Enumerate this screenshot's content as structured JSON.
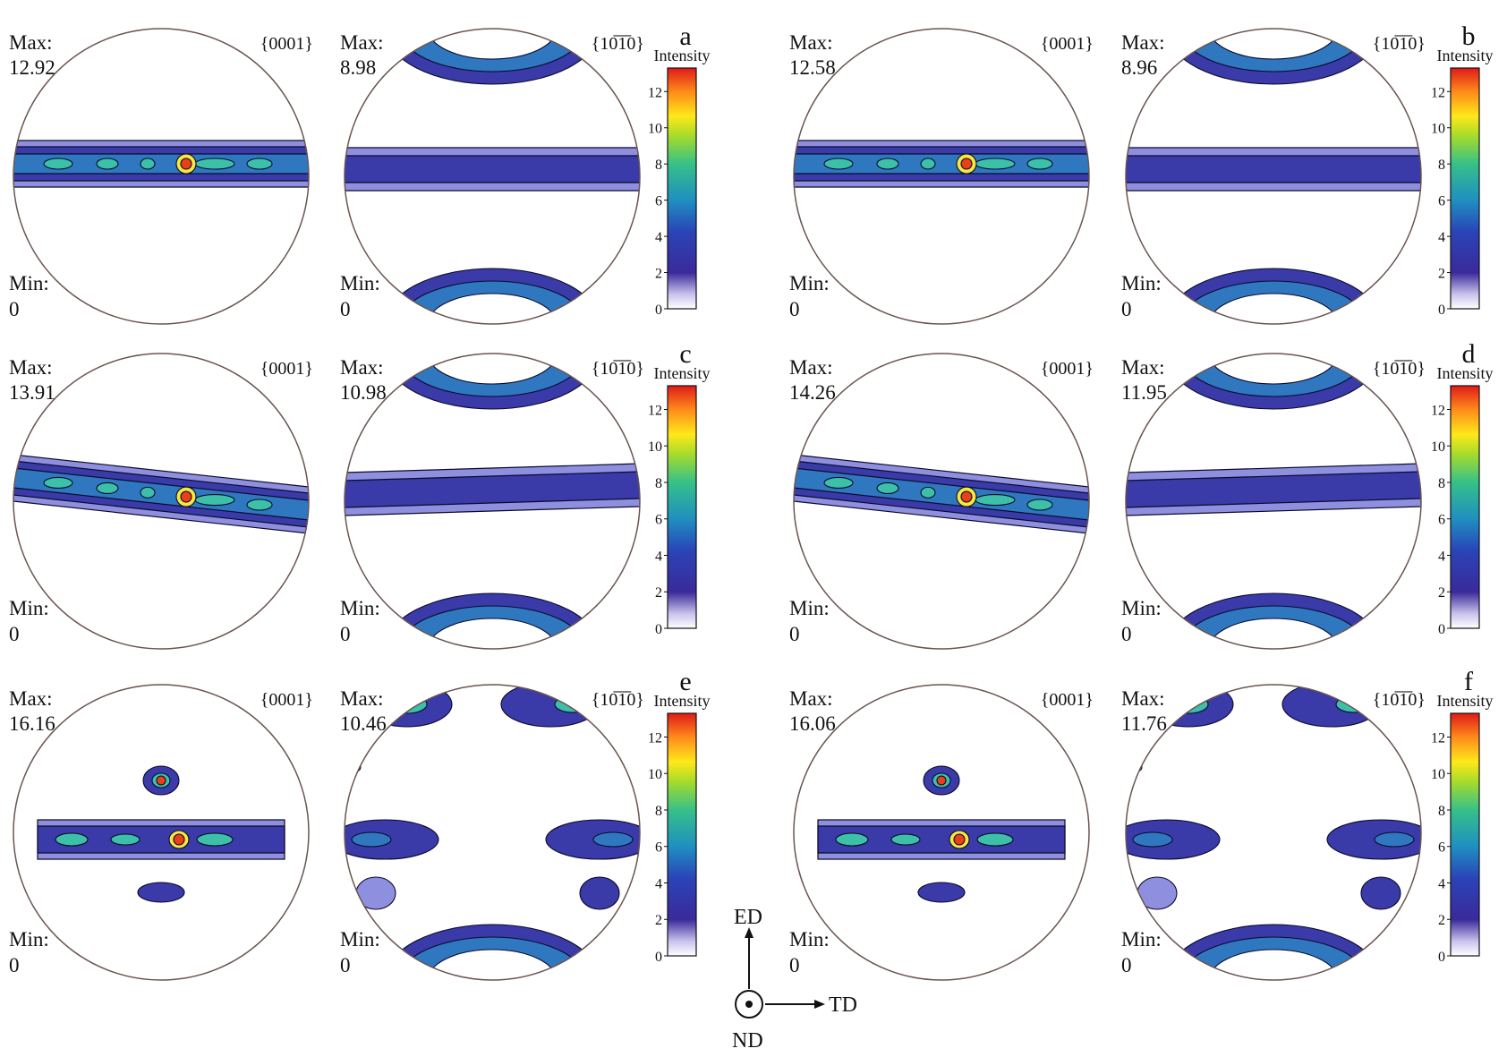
{
  "panels": [
    {
      "letter": "a",
      "intensity_label": "Intensity",
      "pf_basal": {
        "plane": "{0001}",
        "max_label": "Max:",
        "max": "12.92",
        "min_label": "Min:",
        "min": "0"
      },
      "pf_prism": {
        "plane": "{10̅1̅0}",
        "max_label": "Max:",
        "max": "8.98",
        "min_label": "Min:",
        "min": "0"
      }
    },
    {
      "letter": "b",
      "intensity_label": "Intensity",
      "pf_basal": {
        "plane": "{0001}",
        "max_label": "Max:",
        "max": "12.58",
        "min_label": "Min:",
        "min": "0"
      },
      "pf_prism": {
        "plane": "{10̅1̅0}",
        "max_label": "Max:",
        "max": "8.96",
        "min_label": "Min:",
        "min": "0"
      }
    },
    {
      "letter": "c",
      "intensity_label": "Intensity",
      "pf_basal": {
        "plane": "{0001}",
        "max_label": "Max:",
        "max": "13.91",
        "min_label": "Min:",
        "min": "0"
      },
      "pf_prism": {
        "plane": "{10̅1̅0}",
        "max_label": "Max:",
        "max": "10.98",
        "min_label": "Min:",
        "min": "0"
      }
    },
    {
      "letter": "d",
      "intensity_label": "Intensity",
      "pf_basal": {
        "plane": "{0001}",
        "max_label": "Max:",
        "max": "14.26",
        "min_label": "Min:",
        "min": "0"
      },
      "pf_prism": {
        "plane": "{10̅1̅0}",
        "max_label": "Max:",
        "max": "11.95",
        "min_label": "Min:",
        "min": "0"
      }
    },
    {
      "letter": "e",
      "intensity_label": "Intensity",
      "pf_basal": {
        "plane": "{0001}",
        "max_label": "Max:",
        "max": "16.16",
        "min_label": "Min:",
        "min": "0"
      },
      "pf_prism": {
        "plane": "{10̅1̅0}",
        "max_label": "Max:",
        "max": "10.46",
        "min_label": "Min:",
        "min": "0"
      }
    },
    {
      "letter": "f",
      "intensity_label": "Intensity",
      "pf_basal": {
        "plane": "{0001}",
        "max_label": "Max:",
        "max": "16.06",
        "min_label": "Min:",
        "min": "0"
      },
      "pf_prism": {
        "plane": "{10̅1̅0}",
        "max_label": "Max:",
        "max": "11.76",
        "min_label": "Min:",
        "min": "0"
      }
    }
  ],
  "colorbar_ticks": [
    "0",
    "2",
    "4",
    "6",
    "8",
    "10",
    "12"
  ],
  "colorbar_stops": [
    "#ffffff",
    "#3a2a9a",
    "#2a44b8",
    "#1f8fc0",
    "#35c08a",
    "#a8dc2a",
    "#ffe81a",
    "#ff8c1a",
    "#e01a1a"
  ],
  "axes": {
    "ed": "ED",
    "td": "TD",
    "nd": "ND"
  },
  "contour_colors": {
    "level1": "#8f8fe0",
    "level2": "#3a3aa8",
    "level3": "#2f78c0",
    "level4": "#3cc0a8",
    "level5": "#7ad85a",
    "level6": "#f5e640",
    "peak": "#e8401a"
  }
}
